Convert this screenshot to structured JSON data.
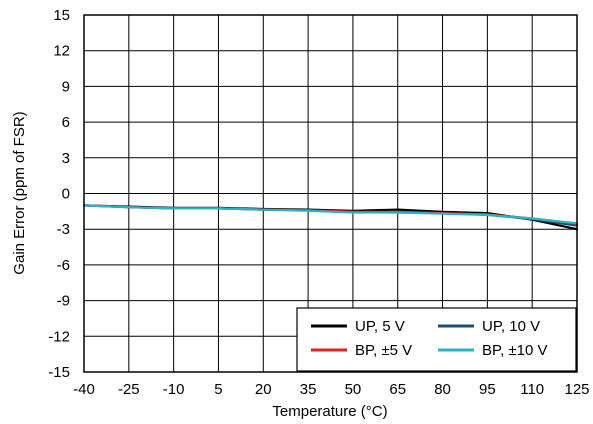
{
  "chart_data": {
    "type": "line",
    "title": "",
    "xlabel": "Temperature (°C)",
    "ylabel": "Gain Error (ppm of FSR)",
    "xlim": [
      -40,
      125
    ],
    "ylim": [
      -15,
      15
    ],
    "xticks": [
      -40,
      -25,
      -10,
      5,
      20,
      35,
      50,
      65,
      80,
      95,
      110,
      125
    ],
    "yticks": [
      15,
      12,
      9,
      6,
      3,
      0,
      -3,
      -6,
      -9,
      -12,
      -15
    ],
    "ytick_labels": [
      "15",
      "12",
      "9",
      "6",
      "3",
      "0",
      "-3",
      "-6",
      "-9",
      "-12",
      "-15"
    ],
    "grid": true,
    "legend_position": "bottom-right",
    "x": [
      -40,
      -25,
      -10,
      5,
      20,
      35,
      50,
      65,
      80,
      95,
      110,
      125
    ],
    "series": [
      {
        "name": "UP, 5 V",
        "color": "#000000",
        "values": [
          -1.0,
          -1.1,
          -1.2,
          -1.2,
          -1.3,
          -1.35,
          -1.45,
          -1.35,
          -1.55,
          -1.65,
          -2.2,
          -3.0
        ]
      },
      {
        "name": "UP, 10 V",
        "color": "#1b4f72",
        "values": [
          -1.0,
          -1.15,
          -1.25,
          -1.25,
          -1.35,
          -1.4,
          -1.55,
          -1.6,
          -1.65,
          -1.8,
          -2.15,
          -2.7
        ]
      },
      {
        "name": "BP, ±5 V",
        "color": "#e02020",
        "values": [
          -1.0,
          -1.15,
          -1.25,
          -1.25,
          -1.35,
          -1.4,
          -1.55,
          -1.55,
          -1.65,
          -1.75,
          -2.1,
          -2.55
        ]
      },
      {
        "name": "BP, ±10 V",
        "color": "#2ab3c0",
        "values": [
          -1.0,
          -1.15,
          -1.25,
          -1.25,
          -1.35,
          -1.45,
          -1.6,
          -1.6,
          -1.7,
          -1.8,
          -2.1,
          -2.5
        ]
      }
    ]
  }
}
